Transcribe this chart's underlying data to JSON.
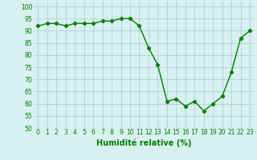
{
  "x": [
    0,
    1,
    2,
    3,
    4,
    5,
    6,
    7,
    8,
    9,
    10,
    11,
    12,
    13,
    14,
    15,
    16,
    17,
    18,
    19,
    20,
    21,
    22,
    23
  ],
  "y": [
    92,
    93,
    93,
    92,
    93,
    93,
    93,
    94,
    94,
    95,
    95,
    92,
    83,
    76,
    61,
    62,
    59,
    61,
    57,
    60,
    63,
    73,
    87,
    90
  ],
  "line_color": "#008000",
  "marker": "D",
  "marker_size": 2.2,
  "bg_color": "#d8f0f0",
  "grid_color": "#aacccc",
  "xlabel": "Humidité relative (%)",
  "xlabel_color": "#008000",
  "ylim": [
    50,
    102
  ],
  "xlim": [
    -0.5,
    23.5
  ],
  "yticks": [
    50,
    55,
    60,
    65,
    70,
    75,
    80,
    85,
    90,
    95,
    100
  ],
  "xticks": [
    0,
    1,
    2,
    3,
    4,
    5,
    6,
    7,
    8,
    9,
    10,
    11,
    12,
    13,
    14,
    15,
    16,
    17,
    18,
    19,
    20,
    21,
    22,
    23
  ],
  "tick_label_fontsize": 5.5,
  "xlabel_fontsize": 7.0,
  "linewidth": 1.0
}
